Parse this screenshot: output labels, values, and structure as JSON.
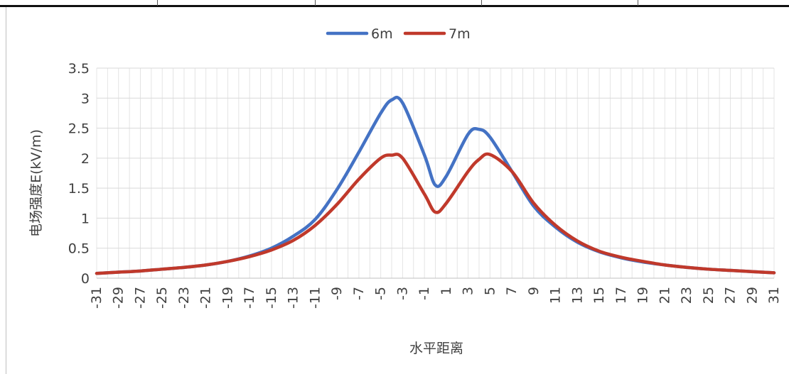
{
  "chart_data": {
    "type": "line",
    "xlabel": "水平距离",
    "ylabel": "电场强度E(kV/m)",
    "ylim": [
      0,
      3.5
    ],
    "yticks": [
      "0",
      "0.5",
      "1",
      "1.5",
      "2",
      "2.5",
      "3",
      "3.5"
    ],
    "xlim": [
      -31,
      31
    ],
    "xticks": [
      "-31",
      "-29",
      "-27",
      "-25",
      "-23",
      "-21",
      "-19",
      "-17",
      "-15",
      "-13",
      "-11",
      "-9",
      "-7",
      "-5",
      "-3",
      "-1",
      "1",
      "3",
      "5",
      "7",
      "9",
      "11",
      "13",
      "15",
      "17",
      "19",
      "21",
      "23",
      "25",
      "27",
      "29",
      "31"
    ],
    "grid": true,
    "legend_position": "top",
    "x": [
      -31,
      -29,
      -27,
      -25,
      -23,
      -21,
      -19,
      -17,
      -15,
      -13,
      -11,
      -9,
      -7,
      -5,
      -4,
      -3,
      -1,
      0,
      1,
      3,
      4,
      5,
      7,
      9,
      11,
      13,
      15,
      17,
      19,
      21,
      23,
      25,
      27,
      29,
      31
    ],
    "series": [
      {
        "name": "6m",
        "color": "#4472c4",
        "values": [
          0.08,
          0.1,
          0.12,
          0.15,
          0.18,
          0.22,
          0.28,
          0.37,
          0.5,
          0.7,
          0.98,
          1.48,
          2.1,
          2.75,
          2.97,
          2.92,
          2.05,
          1.55,
          1.7,
          2.4,
          2.48,
          2.35,
          1.78,
          1.2,
          0.85,
          0.6,
          0.44,
          0.34,
          0.27,
          0.22,
          0.18,
          0.15,
          0.13,
          0.11,
          0.09
        ]
      },
      {
        "name": "7m",
        "color": "#c0392b",
        "values": [
          0.08,
          0.1,
          0.12,
          0.15,
          0.18,
          0.22,
          0.28,
          0.36,
          0.47,
          0.63,
          0.88,
          1.23,
          1.65,
          2.0,
          2.05,
          2.0,
          1.4,
          1.1,
          1.25,
          1.78,
          1.98,
          2.06,
          1.78,
          1.25,
          0.88,
          0.62,
          0.45,
          0.35,
          0.28,
          0.22,
          0.18,
          0.15,
          0.13,
          0.11,
          0.09
        ]
      }
    ]
  }
}
